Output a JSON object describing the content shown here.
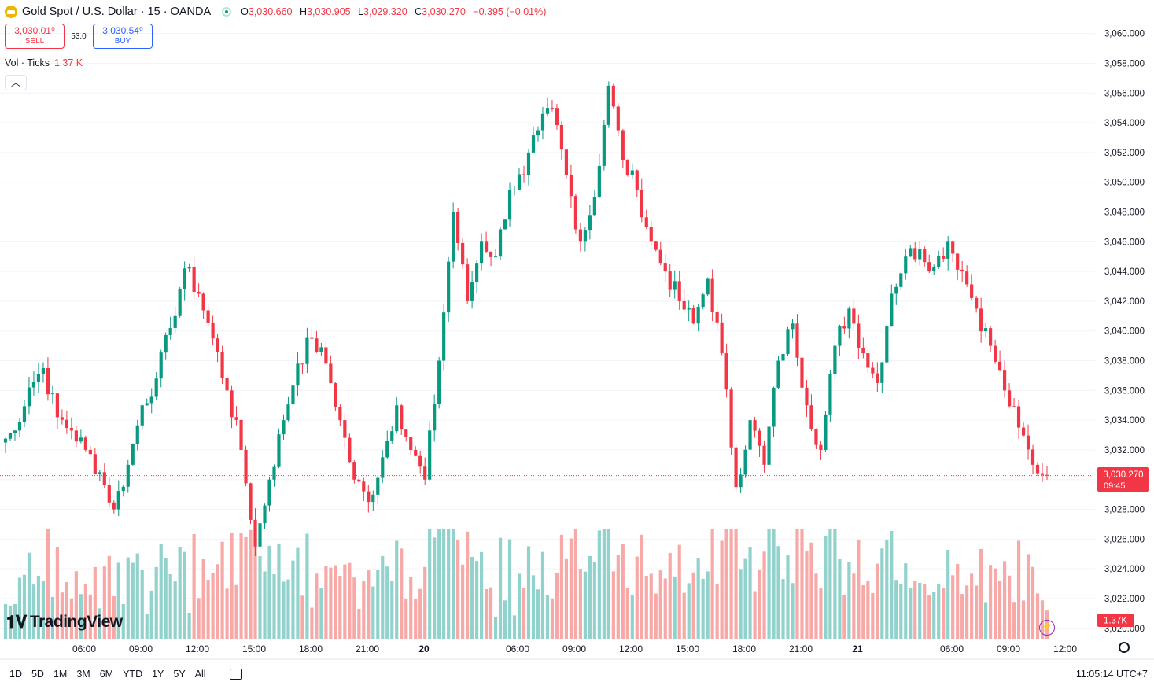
{
  "header": {
    "symbol": "Gold Spot / U.S. Dollar · 15 · OANDA",
    "o_label": "O",
    "o": "3,030.660",
    "h_label": "H",
    "h": "3,030.905",
    "l_label": "L",
    "l": "3,029.320",
    "c_label": "C",
    "c": "3,030.270",
    "change": "−0.395 (−0.01%)"
  },
  "trade": {
    "sell_price": "3,030.01⁰",
    "sell_label": "SELL",
    "spread": "53.0",
    "buy_price": "3,030.54⁰",
    "buy_label": "BUY"
  },
  "volume_legend": {
    "label": "Vol · Ticks",
    "value": "1.37 K"
  },
  "brand": "TradingView",
  "timeframes": [
    "1D",
    "5D",
    "1M",
    "3M",
    "6M",
    "YTD",
    "1Y",
    "5Y",
    "All"
  ],
  "clock": "11:05:14 UTC+7",
  "colors": {
    "up": "#089981",
    "down": "#f23645",
    "vol_up": "#92d2cc",
    "vol_down": "#f7a9a7"
  },
  "chart_data": {
    "type": "candlestick",
    "price_axis": {
      "ticks": [
        3020,
        3022,
        3024,
        3026,
        3028,
        3030,
        3032,
        3034,
        3036,
        3038,
        3040,
        3042,
        3044,
        3046,
        3048,
        3050,
        3052,
        3054,
        3056,
        3058,
        3060
      ],
      "tick_labels": [
        "3,020.000",
        "3,022.000",
        "3,024.000",
        "3,026.000",
        "3,028.000",
        "3,030.000",
        "3,032.000",
        "3,034.000",
        "3,036.000",
        "3,038.000",
        "3,040.000",
        "3,042.000",
        "3,044.000",
        "3,046.000",
        "3,048.000",
        "3,050.000",
        "3,052.000",
        "3,054.000",
        "3,056.000",
        "3,058.000",
        "3,060.000"
      ],
      "ylim": [
        3019.3,
        3061.2
      ]
    },
    "time_axis": {
      "labels": [
        "06:00",
        "09:00",
        "12:00",
        "15:00",
        "18:00",
        "21:00",
        "20",
        "06:00",
        "09:00",
        "12:00",
        "15:00",
        "18:00",
        "21:00",
        "21",
        "06:00",
        "09:00",
        "12:00"
      ]
    },
    "last_price": {
      "value": 3030.27,
      "label": "3,030.270",
      "countdown": "09:45"
    },
    "last_volume": {
      "label": "1.37K"
    },
    "anchors": [
      [
        3032.5,
        3033.3
      ],
      [
        3033.5,
        3036.2
      ],
      [
        3036.2,
        3037.5
      ],
      [
        3037.4,
        3034.2
      ],
      [
        3034.2,
        3033.3
      ],
      [
        3033.3,
        3032.0
      ],
      [
        3032.0,
        3030.5
      ],
      [
        3030.5,
        3028.0
      ],
      [
        3028.0,
        3031.0
      ],
      [
        3031.0,
        3035.0
      ],
      [
        3035.0,
        3036.8
      ],
      [
        3036.8,
        3040.2
      ],
      [
        3040.2,
        3044.2
      ],
      [
        3044.2,
        3042.5
      ],
      [
        3042.5,
        3039.5
      ],
      [
        3039.5,
        3036.0
      ],
      [
        3036.0,
        3032.0
      ],
      [
        3032.0,
        3025.5
      ],
      [
        3025.5,
        3030.0
      ],
      [
        3030.0,
        3034.0
      ],
      [
        3034.0,
        3037.8
      ],
      [
        3037.8,
        3039.5
      ],
      [
        3039.5,
        3037.8
      ],
      [
        3037.8,
        3034.0
      ],
      [
        3034.0,
        3030.0
      ],
      [
        3030.0,
        3028.5
      ],
      [
        3028.5,
        3031.5
      ],
      [
        3031.5,
        3035.0
      ],
      [
        3035.0,
        3032.0
      ],
      [
        3032.0,
        3030.0
      ],
      [
        3030.0,
        3038.0
      ],
      [
        3038.0,
        3048.0
      ],
      [
        3048.0,
        3042.0
      ],
      [
        3042.0,
        3046.0
      ],
      [
        3046.0,
        3045.0
      ],
      [
        3045.0,
        3049.5
      ],
      [
        3049.5,
        3050.5
      ],
      [
        3050.5,
        3053.5
      ],
      [
        3053.5,
        3055.0
      ],
      [
        3055.0,
        3050.5
      ],
      [
        3050.5,
        3046.0
      ],
      [
        3046.0,
        3049.0
      ],
      [
        3049.0,
        3056.5
      ],
      [
        3056.5,
        3051.5
      ],
      [
        3051.5,
        3049.5
      ],
      [
        3049.5,
        3046.0
      ],
      [
        3046.0,
        3044.0
      ],
      [
        3044.0,
        3042.0
      ],
      [
        3042.0,
        3040.5
      ],
      [
        3040.5,
        3043.5
      ],
      [
        3043.5,
        3038.5
      ],
      [
        3038.5,
        3029.5
      ],
      [
        3029.5,
        3034.0
      ],
      [
        3034.0,
        3031.0
      ],
      [
        3031.0,
        3038.0
      ],
      [
        3038.0,
        3040.5
      ],
      [
        3040.5,
        3035.0
      ],
      [
        3035.0,
        3032.0
      ],
      [
        3032.0,
        3039.0
      ],
      [
        3039.0,
        3041.5
      ],
      [
        3041.5,
        3038.5
      ],
      [
        3038.5,
        3036.5
      ],
      [
        3036.5,
        3042.5
      ],
      [
        3042.5,
        3045.0
      ],
      [
        3045.0,
        3045.5
      ],
      [
        3045.5,
        3044.3
      ],
      [
        3044.3,
        3046.0
      ],
      [
        3046.0,
        3044.0
      ],
      [
        3044.0,
        3041.5
      ],
      [
        3041.5,
        3039.0
      ],
      [
        3039.0,
        3036.0
      ],
      [
        3036.0,
        3033.5
      ],
      [
        3033.5,
        3031.0
      ],
      [
        3031.0,
        3030.27
      ]
    ],
    "candles_per_segment": 3,
    "candle_count": 222,
    "note_source": "values estimated from the rendered chart"
  }
}
